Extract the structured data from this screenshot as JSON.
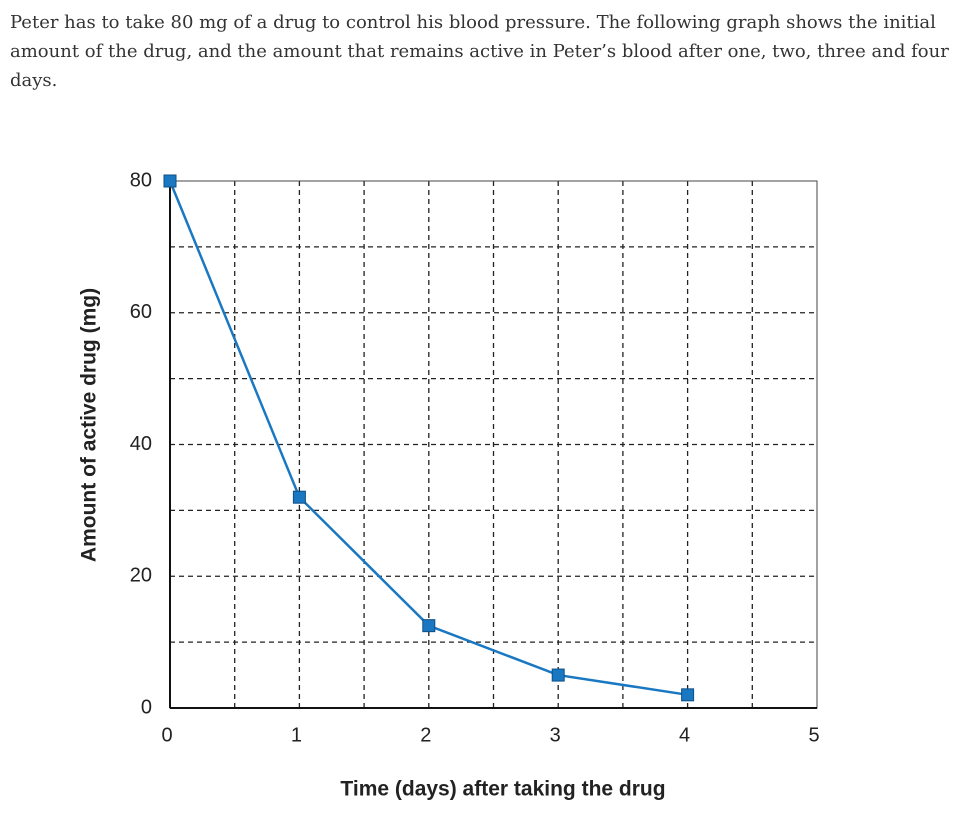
{
  "intro": "Peter has to take 80 mg of a drug to control his blood pressure. The following graph shows the initial amount of the drug, and the amount that remains active in Peter’s blood after one, two, three and four days.",
  "chart_data": {
    "type": "line",
    "x_label": "Time (days) after taking the drug",
    "y_label": "Amount of active drug (mg)",
    "x": [
      0,
      1,
      2,
      3,
      4
    ],
    "values": [
      80,
      32,
      12.5,
      5,
      2
    ],
    "color": "#1a78c2",
    "xlim": [
      0,
      5
    ],
    "ylim": [
      0,
      80
    ],
    "xticks": [
      0,
      1,
      2,
      3,
      4,
      5
    ],
    "yticks": [
      0,
      20,
      40,
      60,
      80
    ],
    "xgrid": [
      0.5,
      1,
      1.5,
      2,
      2.5,
      3,
      3.5,
      4,
      4.5
    ],
    "ygrid": [
      10,
      20,
      30,
      40,
      50,
      60,
      70
    ],
    "grid": true
  }
}
